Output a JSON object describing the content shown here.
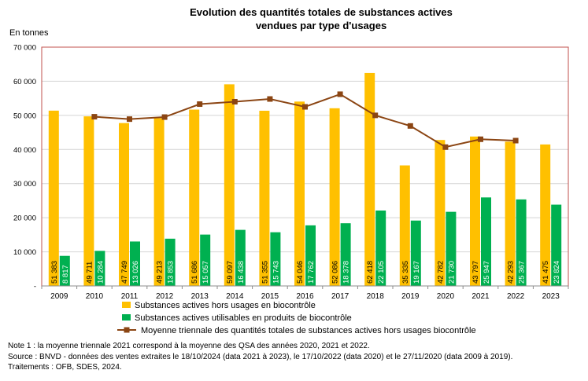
{
  "chart_data": {
    "type": "bar",
    "title_lines": [
      "Evolution des quantités totales de substances actives",
      "vendues par type d'usages"
    ],
    "ylabel": "En tonnes",
    "xlabel": "",
    "ylim": [
      0,
      70000
    ],
    "yticks": [
      0,
      10000,
      20000,
      30000,
      40000,
      50000,
      60000,
      70000
    ],
    "ytick_labels": [
      "-",
      "10 000",
      "20 000",
      "30 000",
      "40 000",
      "50 000",
      "60 000",
      "70 000"
    ],
    "categories": [
      "2009",
      "2010",
      "2011",
      "2012",
      "2013",
      "2014",
      "2015",
      "2016",
      "2017",
      "2018",
      "2019",
      "2020",
      "2021",
      "2022",
      "2023"
    ],
    "series": [
      {
        "name": "Substances actives hors usages en biocontrôle",
        "kind": "bar",
        "color": "#FFC000",
        "values": [
          51383,
          49711,
          47749,
          49213,
          51686,
          59097,
          51355,
          54046,
          52086,
          62418,
          35335,
          42782,
          43797,
          42293,
          41475
        ],
        "labels": [
          "51 383",
          "49 711",
          "47 749",
          "49 213",
          "51 686",
          "59 097",
          "51 355",
          "54 046",
          "52 086",
          "62 418",
          "35 335",
          "42 782",
          "43 797",
          "42 293",
          "41 475"
        ]
      },
      {
        "name": "Substances actives utilisables en produits de biocontrôle",
        "kind": "bar",
        "color": "#00B050",
        "values": [
          8817,
          10284,
          13026,
          13853,
          15057,
          16438,
          15743,
          17762,
          18378,
          22105,
          19167,
          21730,
          25947,
          25367,
          23824
        ],
        "labels": [
          "8 817",
          "10 284",
          "13 026",
          "13 853",
          "15 057",
          "16 438",
          "15 743",
          "17 762",
          "18 378",
          "22 105",
          "19 167",
          "21 730",
          "25 947",
          "25 367",
          "23 824"
        ]
      },
      {
        "name": "Moyenne triennale des quantités totales de substances actives hors usages  biocontrôle",
        "kind": "line",
        "color": "#8B4513",
        "values": [
          null,
          49600,
          48900,
          49500,
          53300,
          54000,
          54800,
          52500,
          56200,
          50000,
          46900,
          40700,
          43000,
          42600,
          null
        ]
      }
    ]
  },
  "notes": [
    "Note 1 : la moyenne triennale 2021 correspond à la moyenne des QSA des années 2020, 2021 et 2022.",
    "Source : BNVD - données des ventes extraites le 18/10/2024 (data 2021 à 2023), le 17/10/2022 (data 2020) et le 27/11/2020 (data 2009 à 2019).",
    "Traitements : OFB, SDES, 2024."
  ]
}
